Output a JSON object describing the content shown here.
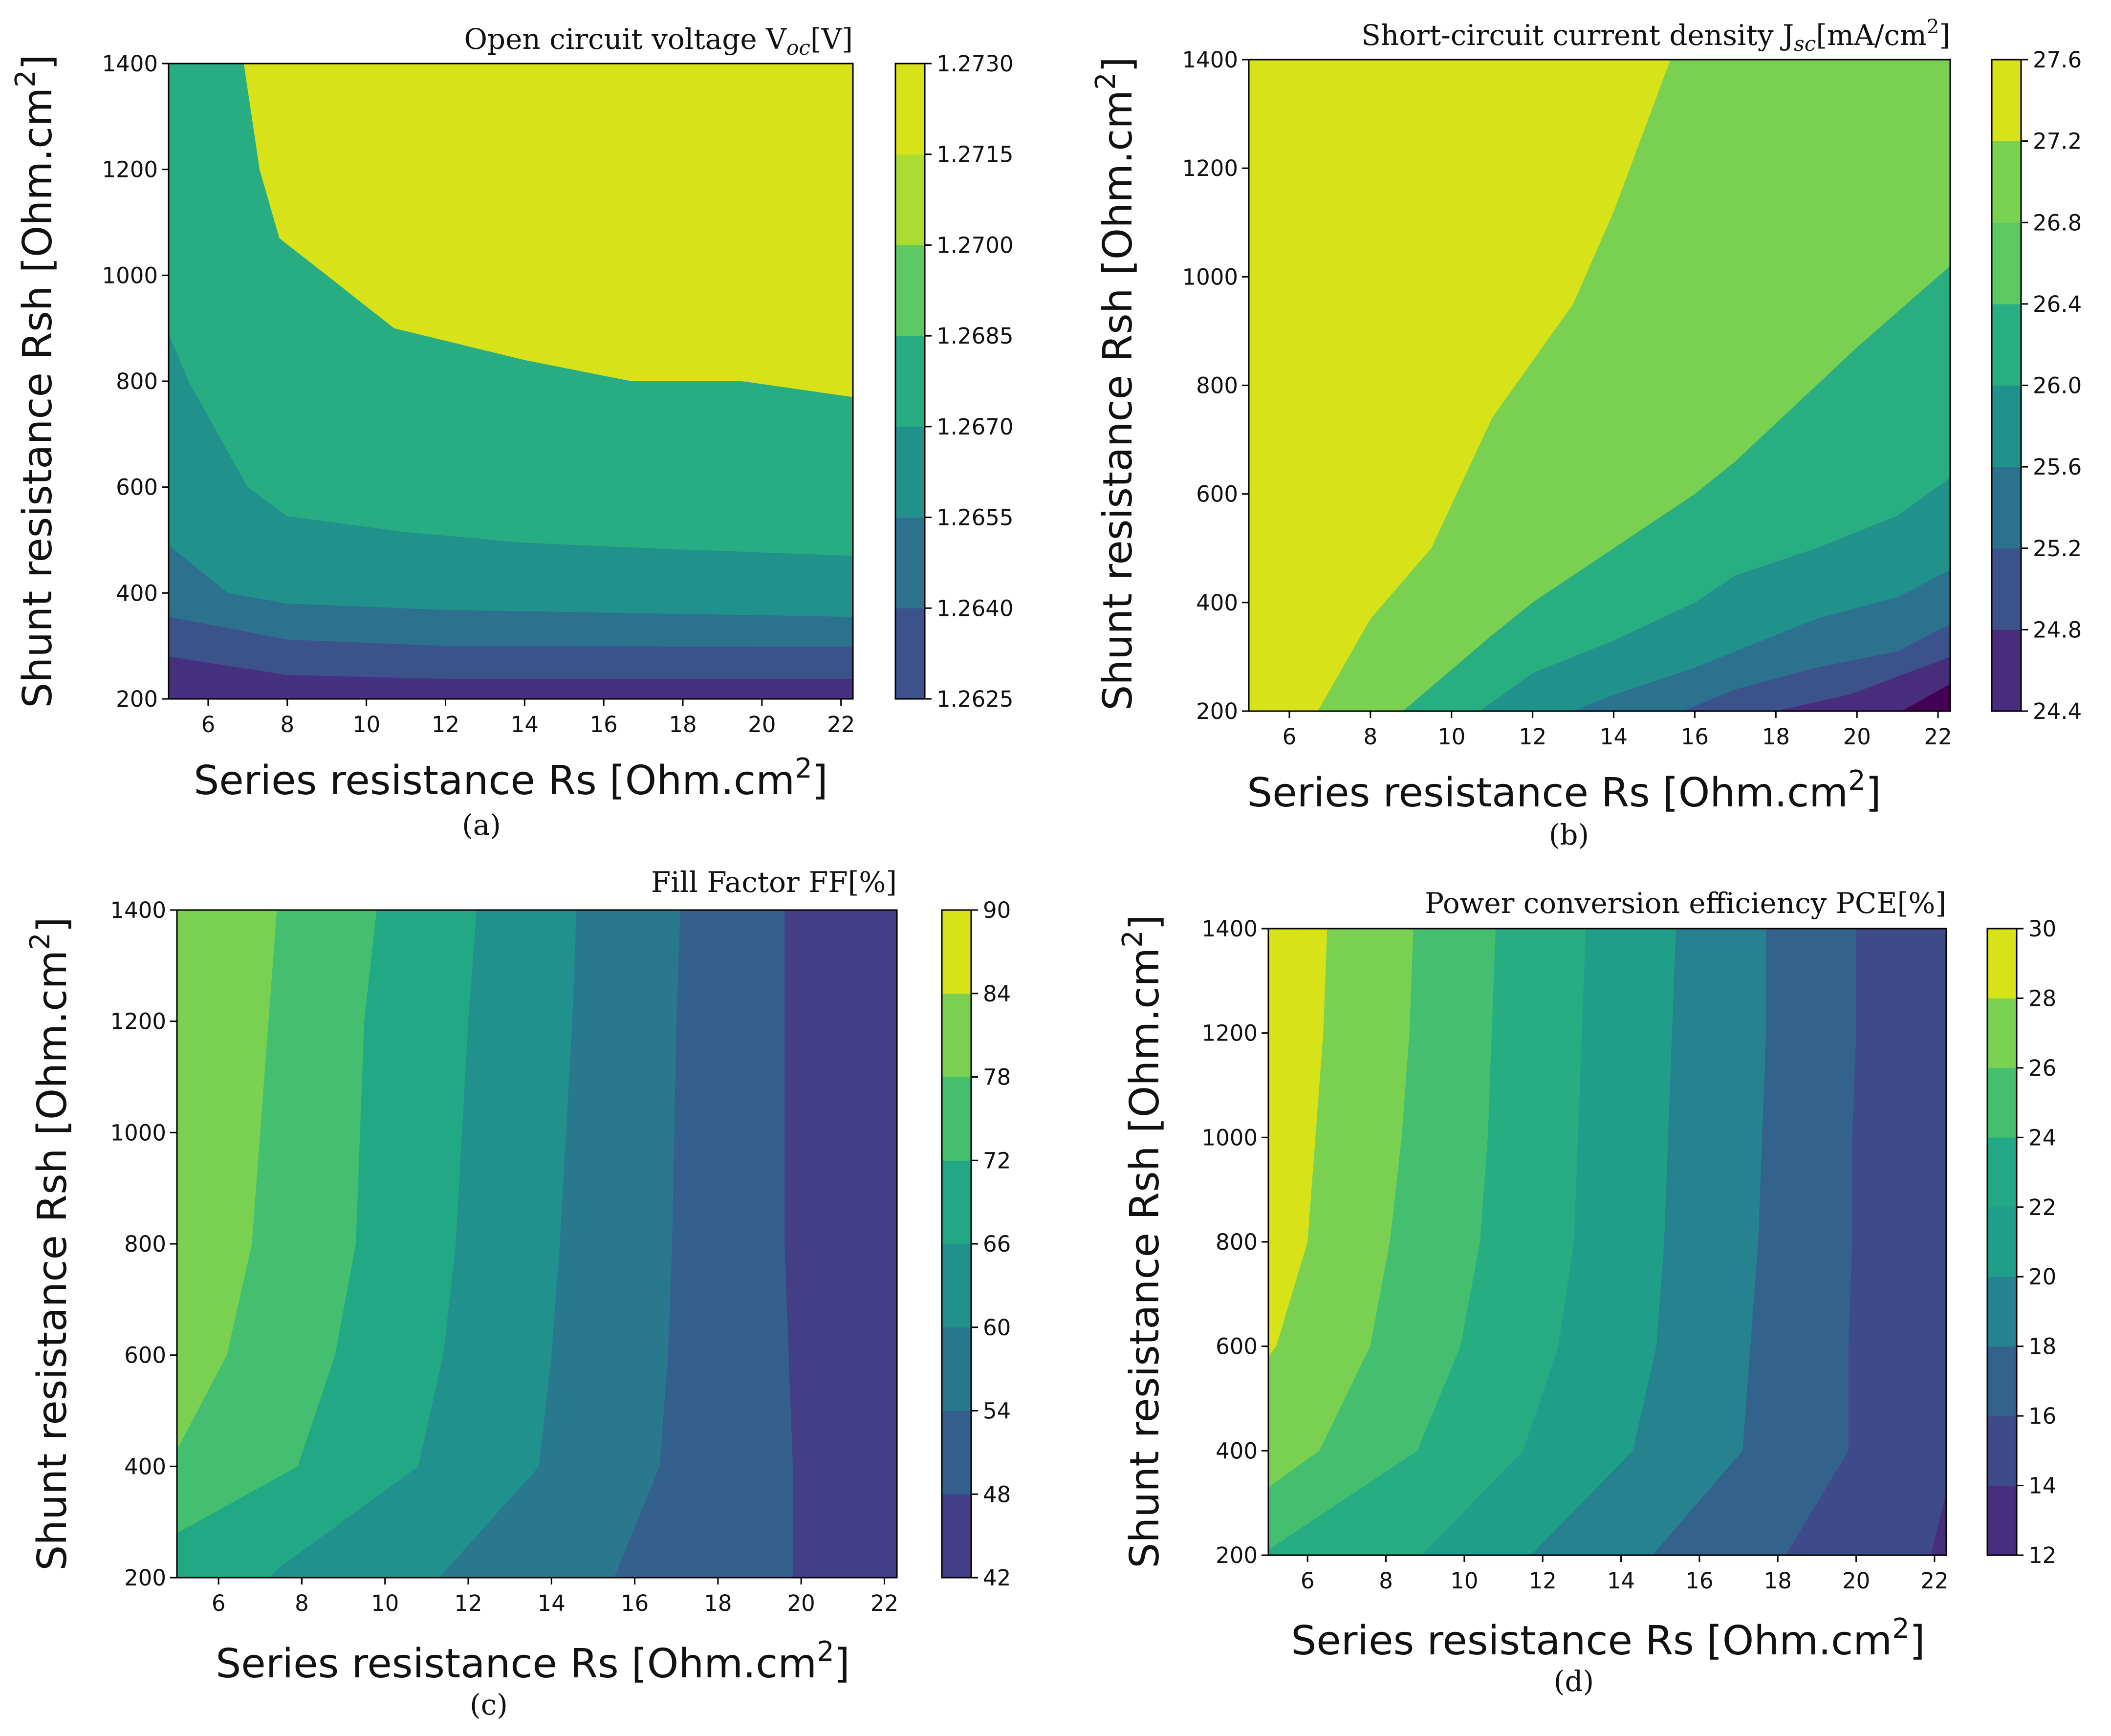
{
  "chart_data": [
    {
      "type": "contour",
      "panel": "(a)",
      "title": "Open circuit voltage  V",
      "title_sub": "oc",
      "title_tail": "[V]",
      "xlabel": "Series resistance Rs [Ohm.cm",
      "xlabel_sup": "2",
      "xlabel_tail": "]",
      "ylabel": "Shunt resistance Rsh [Ohm.cm",
      "ylabel_sup": "2",
      "ylabel_tail": "]",
      "xlim": [
        5,
        22.3
      ],
      "ylim": [
        200,
        1400
      ],
      "xticks": [
        "6",
        "8",
        "10",
        "12",
        "14",
        "16",
        "18",
        "20",
        "22"
      ],
      "yticks": [
        "200",
        "400",
        "600",
        "800",
        "1000",
        "1200",
        "1400"
      ],
      "colorbar_ticks": [
        "1.2625",
        "1.2640",
        "1.2655",
        "1.2670",
        "1.2685",
        "1.2700",
        "1.2715",
        "1.2730"
      ],
      "level_colors": [
        "#46317e",
        "#3b528b",
        "#2c728e",
        "#21918c",
        "#27ad81",
        "#5ec962",
        "#aadc32",
        "#d8e219"
      ],
      "band_colors": [
        "#46317e",
        "#3b528b",
        "#2c728e",
        "#21918c",
        "#27ad81",
        "#7ad151",
        "#d8e219"
      ],
      "boundaries": [
        [
          [
            5,
            280
          ],
          [
            8,
            245
          ],
          [
            12,
            238
          ],
          [
            22.3,
            238
          ]
        ],
        [
          [
            5,
            355
          ],
          [
            8,
            312
          ],
          [
            12,
            300
          ],
          [
            22.3,
            298
          ]
        ],
        [
          [
            5,
            490
          ],
          [
            6.5,
            400
          ],
          [
            8,
            380
          ],
          [
            12,
            368
          ],
          [
            22.3,
            355
          ]
        ],
        [
          [
            5,
            890
          ],
          [
            5.5,
            800
          ],
          [
            7,
            600
          ],
          [
            8,
            545
          ],
          [
            11,
            515
          ],
          [
            14,
            495
          ],
          [
            17,
            485
          ],
          [
            22.3,
            470
          ]
        ],
        [
          [
            6.9,
            1400
          ],
          [
            7.3,
            1200
          ],
          [
            7.8,
            1070
          ],
          [
            9,
            1000
          ],
          [
            10.7,
            900
          ],
          [
            14,
            840
          ],
          [
            16.7,
            800
          ],
          [
            19.5,
            800
          ],
          [
            22.3,
            770
          ]
        ]
      ]
    },
    {
      "type": "contour",
      "panel": "(b)",
      "title": "Short-circuit current density J",
      "title_sub": "sc",
      "title_tail": "[mA/cm",
      "title_sup": "2",
      "title_end": "]",
      "xlabel": "Series resistance Rs [Ohm.cm",
      "xlabel_sup": "2",
      "xlabel_tail": "]",
      "ylabel": "Shunt resistance Rsh [Ohm.cm",
      "ylabel_sup": "2",
      "ylabel_tail": "]",
      "xlim": [
        5,
        22.3
      ],
      "ylim": [
        200,
        1400
      ],
      "xticks": [
        "6",
        "8",
        "10",
        "12",
        "14",
        "16",
        "18",
        "20",
        "22"
      ],
      "yticks": [
        "200",
        "400",
        "600",
        "800",
        "1000",
        "1200",
        "1400"
      ],
      "colorbar_ticks": [
        "24.4",
        "24.8",
        "25.2",
        "25.6",
        "26.0",
        "26.4",
        "26.8",
        "27.2",
        "27.6"
      ],
      "level_colors": [
        "#440154",
        "#472d7b",
        "#3b528b",
        "#2c728e",
        "#21918c",
        "#28ae80",
        "#5ec962",
        "#7ad151",
        "#d8e219"
      ],
      "band_colors": [
        "#440154",
        "#472d7b",
        "#3b528b",
        "#2c728e",
        "#21918c",
        "#28ae80",
        "#7ad151",
        "#d8e219"
      ],
      "boundaries": [
        [
          [
            6.7,
            200
          ],
          [
            8,
            370
          ],
          [
            9.5,
            500
          ],
          [
            11,
            740
          ],
          [
            13,
            950
          ],
          [
            14,
            1120
          ],
          [
            15.4,
            1400
          ]
        ],
        [
          [
            8.8,
            200
          ],
          [
            11,
            340
          ],
          [
            12,
            400
          ],
          [
            14,
            500
          ],
          [
            16,
            600
          ],
          [
            17,
            660
          ],
          [
            19,
            800
          ],
          [
            20,
            870
          ],
          [
            22.3,
            1020
          ]
        ],
        [
          [
            10.7,
            200
          ],
          [
            12,
            270
          ],
          [
            14,
            330
          ],
          [
            16,
            400
          ],
          [
            17,
            450
          ],
          [
            19,
            500
          ],
          [
            20,
            530
          ],
          [
            21,
            560
          ],
          [
            22.3,
            630
          ]
        ],
        [
          [
            13,
            200
          ],
          [
            14,
            230
          ],
          [
            16,
            280
          ],
          [
            18,
            340
          ],
          [
            19,
            370
          ],
          [
            20,
            390
          ],
          [
            21,
            410
          ],
          [
            22.3,
            460
          ]
        ],
        [
          [
            15.7,
            200
          ],
          [
            17,
            240
          ],
          [
            19,
            280
          ],
          [
            21,
            310
          ],
          [
            22.3,
            360
          ]
        ],
        [
          [
            18,
            200
          ],
          [
            19.8,
            230
          ],
          [
            22.3,
            300
          ]
        ],
        [
          [
            21.1,
            200
          ],
          [
            22.3,
            250
          ]
        ]
      ]
    },
    {
      "type": "contour",
      "panel": "(c)",
      "title": "Fill Factor FF[%]",
      "xlabel": "Series resistance Rs [Ohm.cm",
      "xlabel_sup": "2",
      "xlabel_tail": "]",
      "ylabel": "Shunt resistance Rsh [Ohm.cm",
      "ylabel_sup": "2",
      "ylabel_tail": "]",
      "xlim": [
        5,
        22.3
      ],
      "ylim": [
        200,
        1400
      ],
      "xticks": [
        "6",
        "8",
        "10",
        "12",
        "14",
        "16",
        "18",
        "20",
        "22"
      ],
      "yticks": [
        "200",
        "400",
        "600",
        "800",
        "1000",
        "1200",
        "1400"
      ],
      "colorbar_ticks": [
        "42",
        "48",
        "54",
        "60",
        "66",
        "72",
        "78",
        "84",
        "90"
      ],
      "level_colors": [
        "#471365",
        "#433e85",
        "#355f8d",
        "#2a788e",
        "#20918c",
        "#22a884",
        "#44bf70",
        "#7ad151",
        "#d8e219"
      ],
      "band_colors": [
        "#471365",
        "#433e85",
        "#355f8d",
        "#2a788e",
        "#20918c",
        "#22a884",
        "#44bf70",
        "#7ad151"
      ],
      "boundaries": [
        [
          [
            7.4,
            1400
          ],
          [
            7.2,
            1200
          ],
          [
            6.8,
            800
          ],
          [
            6.2,
            600
          ],
          [
            5,
            430
          ]
        ],
        [
          [
            9.8,
            1400
          ],
          [
            9.5,
            1200
          ],
          [
            9.3,
            800
          ],
          [
            8.8,
            600
          ],
          [
            7.9,
            400
          ],
          [
            5,
            280
          ]
        ],
        [
          [
            12.2,
            1400
          ],
          [
            12,
            1200
          ],
          [
            11.7,
            800
          ],
          [
            11.4,
            600
          ],
          [
            10.8,
            400
          ],
          [
            7.5,
            220
          ],
          [
            7.2,
            200
          ]
        ],
        [
          [
            14.6,
            1400
          ],
          [
            14.5,
            1200
          ],
          [
            14.2,
            800
          ],
          [
            14,
            600
          ],
          [
            13.7,
            400
          ],
          [
            11.3,
            200
          ]
        ],
        [
          [
            17.1,
            1400
          ],
          [
            17,
            1200
          ],
          [
            16.9,
            800
          ],
          [
            16.8,
            600
          ],
          [
            16.6,
            400
          ],
          [
            15.5,
            200
          ]
        ],
        [
          [
            19.6,
            1400
          ],
          [
            19.6,
            1200
          ],
          [
            19.6,
            800
          ],
          [
            19.7,
            600
          ],
          [
            19.8,
            400
          ],
          [
            19.8,
            200
          ]
        ]
      ]
    },
    {
      "type": "contour",
      "panel": "(d)",
      "title": "Power conversion efficiency PCE[%]",
      "xlabel": "Series resistance Rs [Ohm.cm",
      "xlabel_sup": "2",
      "xlabel_tail": "]",
      "ylabel": "Shunt resistance Rsh [Ohm.cm",
      "ylabel_sup": "2",
      "ylabel_tail": "]",
      "xlim": [
        5,
        22.3
      ],
      "ylim": [
        200,
        1400
      ],
      "xticks": [
        "6",
        "8",
        "10",
        "12",
        "14",
        "16",
        "18",
        "20",
        "22"
      ],
      "yticks": [
        "200",
        "400",
        "600",
        "800",
        "1000",
        "1200",
        "1400"
      ],
      "colorbar_ticks": [
        "12",
        "14",
        "16",
        "18",
        "20",
        "22",
        "24",
        "26",
        "28",
        "30"
      ],
      "level_colors": [
        "#440154",
        "#472f7d",
        "#3e4a89",
        "#33638d",
        "#26828e",
        "#1f9e89",
        "#22a884",
        "#44bf70",
        "#7ad151",
        "#d8e219"
      ],
      "band_colors": [
        "#440154",
        "#472f7d",
        "#3e4a89",
        "#33638d",
        "#26828e",
        "#1f9e89",
        "#27ad81",
        "#44bf70",
        "#7ad151",
        "#d8e219"
      ],
      "boundaries": [
        [
          [
            6.5,
            1400
          ],
          [
            6.4,
            1200
          ],
          [
            6.2,
            1000
          ],
          [
            6,
            800
          ],
          [
            5.2,
            600
          ],
          [
            5,
            580
          ]
        ],
        [
          [
            8.7,
            1400
          ],
          [
            8.6,
            1200
          ],
          [
            8.4,
            1000
          ],
          [
            8.1,
            800
          ],
          [
            7.6,
            600
          ],
          [
            6.3,
            400
          ],
          [
            5,
            330
          ]
        ],
        [
          [
            10.8,
            1400
          ],
          [
            10.7,
            1200
          ],
          [
            10.6,
            1000
          ],
          [
            10.4,
            800
          ],
          [
            9.9,
            600
          ],
          [
            8.8,
            400
          ],
          [
            5,
            210
          ]
        ],
        [
          [
            13.1,
            1400
          ],
          [
            13,
            1200
          ],
          [
            12.9,
            1000
          ],
          [
            12.8,
            800
          ],
          [
            12.4,
            600
          ],
          [
            11.5,
            400
          ],
          [
            8.9,
            200
          ]
        ],
        [
          [
            15.4,
            1400
          ],
          [
            15.3,
            1200
          ],
          [
            15.2,
            1000
          ],
          [
            15.1,
            800
          ],
          [
            14.9,
            600
          ],
          [
            14.3,
            400
          ],
          [
            11.7,
            200
          ]
        ],
        [
          [
            17.7,
            1400
          ],
          [
            17.7,
            1200
          ],
          [
            17.6,
            1000
          ],
          [
            17.5,
            800
          ],
          [
            17.3,
            600
          ],
          [
            17.1,
            400
          ],
          [
            14.8,
            200
          ]
        ],
        [
          [
            20,
            1400
          ],
          [
            20,
            1200
          ],
          [
            19.9,
            1000
          ],
          [
            19.9,
            800
          ],
          [
            19.8,
            600
          ],
          [
            19.8,
            400
          ],
          [
            18.2,
            200
          ]
        ],
        [
          [
            22.3,
            320
          ],
          [
            21.9,
            200
          ]
        ]
      ]
    }
  ]
}
